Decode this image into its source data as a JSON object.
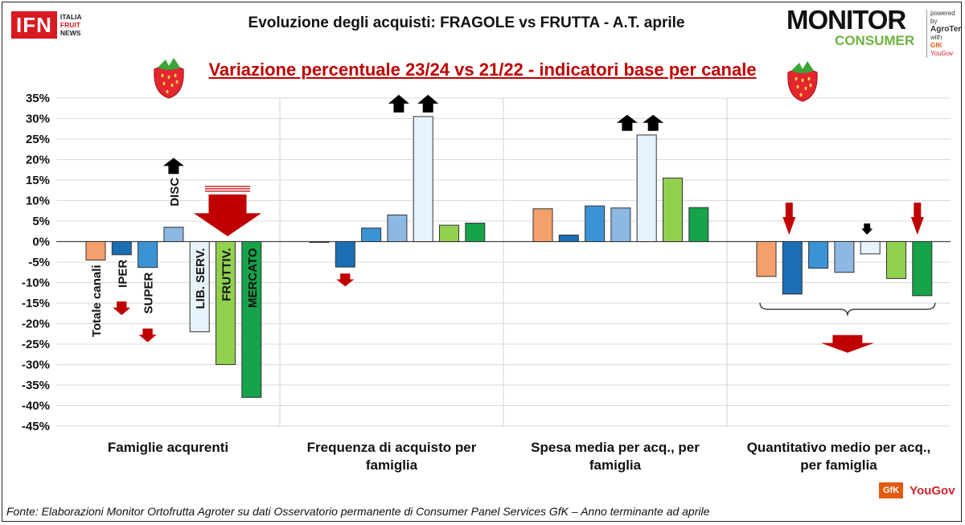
{
  "header": {
    "title": "Evoluzione degli acquisti: FRAGOLE vs FRUTTA  - A.T. aprile",
    "subtitle": "Variazione percentuale 23/24 vs 21/22 - indicatori base per canale"
  },
  "logos": {
    "ifn_main": "IFN",
    "ifn_lines": [
      "ITALIA",
      "FRUIT",
      "NEWS"
    ],
    "monitor_top": "MONITOR",
    "monitor_bottom": "CONSUMER",
    "monitor_side": [
      "powered by",
      "AgroTer",
      "with",
      "GfK",
      "YouGov"
    ],
    "gfk": "GfK",
    "yougov": "YouGov"
  },
  "footer": "Fonte: Elaborazioni Monitor Ortofrutta Agroter su dati Osservatorio permanente di Consumer Panel Services GfK  – Anno terminante ad aprile",
  "colors": {
    "Totale canali": "#f4a06a",
    "IPER": "#1a6fb5",
    "SUPER": "#3b93d6",
    "DISC": "#8db8e2",
    "LIB. SERV.": "#e7f3fb",
    "FRUTTIV.": "#92d050",
    "MERCATO": "#16a34a",
    "arrow_red": "#c00000",
    "arrow_black": "#000000"
  },
  "chart_data": {
    "type": "bar",
    "categories": [
      "Famiglie acqurenti",
      "Frequenza di acquisto per famiglia",
      "Spesa media per acq., per famiglia",
      "Quantitativo medio per acq., per famiglia"
    ],
    "series": [
      {
        "name": "Totale canali",
        "values": [
          -4.5,
          -0.2,
          8.0,
          -8.5
        ]
      },
      {
        "name": "IPER",
        "values": [
          -3.2,
          -6.2,
          1.6,
          -12.8
        ]
      },
      {
        "name": "SUPER",
        "values": [
          -6.3,
          3.3,
          8.7,
          -6.5
        ]
      },
      {
        "name": "DISC",
        "values": [
          3.5,
          6.5,
          8.2,
          -7.5
        ]
      },
      {
        "name": "LIB. SERV.",
        "values": [
          -22.0,
          30.5,
          26.0,
          -3.0
        ]
      },
      {
        "name": "FRUTTIV.",
        "values": [
          -30.0,
          4.0,
          15.5,
          -9.0
        ]
      },
      {
        "name": "MERCATO",
        "values": [
          -38.0,
          4.5,
          8.3,
          -13.2
        ]
      }
    ],
    "bar_labels_group1": [
      "Totale canali",
      "IPER",
      "SUPER",
      "DISC",
      "LIB. SERV.",
      "FRUTTIV.",
      "MERCATO"
    ],
    "y_ticks": [
      "35%",
      "30%",
      "25%",
      "20%",
      "15%",
      "10%",
      "5%",
      "0%",
      "-5%",
      "-10%",
      "-15%",
      "-20%",
      "-25%",
      "-30%",
      "-35%",
      "-40%",
      "-45%"
    ],
    "ylim": [
      -45,
      35
    ],
    "grid": true,
    "legend": "none"
  }
}
